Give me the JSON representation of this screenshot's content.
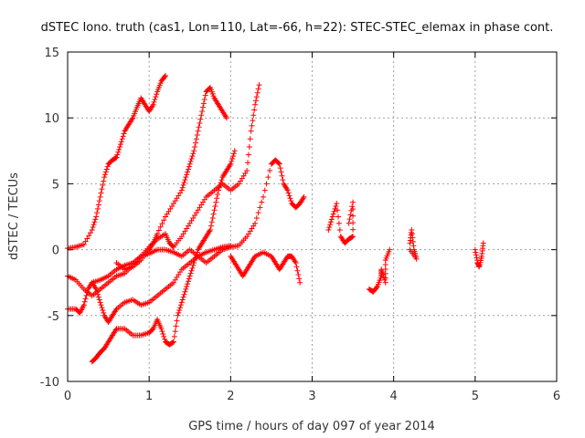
{
  "chart_data": {
    "type": "scatter",
    "title": "dSTEC Iono. truth (cas1, Lon=110, Lat=-66, h=22): STEC-STEC_elemax in phase cont.",
    "xlabel": "GPS time / hours of day 097 of year 2014",
    "ylabel": "dSTEC  / TECUs",
    "xlim": [
      0,
      6
    ],
    "ylim": [
      -10,
      15
    ],
    "xticks": [
      0,
      1,
      2,
      3,
      4,
      5,
      6
    ],
    "yticks": [
      -10,
      -5,
      0,
      5,
      10,
      15
    ],
    "grid": true,
    "marker": "plus",
    "color": "#ff0000",
    "series": [
      {
        "points": [
          [
            0.0,
            0.1
          ],
          [
            0.1,
            0.2
          ],
          [
            0.2,
            0.4
          ],
          [
            0.3,
            1.5
          ],
          [
            0.35,
            2.5
          ],
          [
            0.4,
            4.0
          ],
          [
            0.45,
            5.5
          ],
          [
            0.5,
            6.5
          ],
          [
            0.55,
            6.8
          ],
          [
            0.6,
            7.0
          ],
          [
            0.65,
            8.0
          ],
          [
            0.7,
            9.0
          ],
          [
            0.75,
            9.5
          ],
          [
            0.8,
            10.0
          ],
          [
            0.85,
            10.8
          ],
          [
            0.9,
            11.5
          ],
          [
            0.95,
            11.0
          ],
          [
            1.0,
            10.5
          ],
          [
            1.05,
            11.0
          ],
          [
            1.1,
            12.0
          ],
          [
            1.15,
            12.8
          ],
          [
            1.2,
            13.2
          ]
        ]
      },
      {
        "points": [
          [
            0.6,
            -1.0
          ],
          [
            0.7,
            -1.5
          ],
          [
            0.8,
            -1.3
          ],
          [
            0.9,
            -0.8
          ],
          [
            1.0,
            0.0
          ],
          [
            1.05,
            0.5
          ],
          [
            1.1,
            1.2
          ],
          [
            1.2,
            2.5
          ],
          [
            1.3,
            3.5
          ],
          [
            1.4,
            4.5
          ],
          [
            1.45,
            5.5
          ],
          [
            1.5,
            6.5
          ],
          [
            1.55,
            7.5
          ],
          [
            1.6,
            9.0
          ],
          [
            1.65,
            10.5
          ],
          [
            1.7,
            12.0
          ],
          [
            1.75,
            12.3
          ],
          [
            1.8,
            11.5
          ],
          [
            1.85,
            11.0
          ],
          [
            1.9,
            10.5
          ],
          [
            1.95,
            10.0
          ]
        ]
      },
      {
        "points": [
          [
            0.0,
            -2.0
          ],
          [
            0.1,
            -2.3
          ],
          [
            0.2,
            -3.0
          ],
          [
            0.3,
            -3.5
          ],
          [
            0.4,
            -3.0
          ],
          [
            0.5,
            -2.5
          ],
          [
            0.6,
            -2.0
          ],
          [
            0.7,
            -1.8
          ],
          [
            0.8,
            -1.2
          ],
          [
            0.9,
            -0.5
          ],
          [
            1.0,
            0.2
          ],
          [
            1.1,
            0.8
          ],
          [
            1.2,
            1.2
          ],
          [
            1.25,
            0.5
          ],
          [
            1.3,
            0.2
          ],
          [
            1.4,
            1.0
          ],
          [
            1.5,
            2.0
          ],
          [
            1.6,
            3.0
          ],
          [
            1.7,
            4.0
          ],
          [
            1.8,
            4.5
          ],
          [
            1.9,
            5.0
          ],
          [
            2.0,
            4.5
          ],
          [
            2.1,
            5.0
          ],
          [
            2.2,
            6.0
          ],
          [
            2.25,
            9.0
          ],
          [
            2.3,
            11.0
          ],
          [
            2.35,
            12.5
          ]
        ]
      },
      {
        "points": [
          [
            0.0,
            -4.5
          ],
          [
            0.1,
            -4.5
          ],
          [
            0.15,
            -4.8
          ],
          [
            0.2,
            -4.2
          ],
          [
            0.25,
            -3.0
          ],
          [
            0.3,
            -2.5
          ],
          [
            0.4,
            -2.3
          ],
          [
            0.5,
            -2.0
          ],
          [
            0.6,
            -1.5
          ],
          [
            0.7,
            -1.2
          ],
          [
            0.8,
            -1.0
          ],
          [
            0.9,
            -0.5
          ],
          [
            1.0,
            -0.3
          ],
          [
            1.1,
            0.0
          ],
          [
            1.2,
            0.0
          ],
          [
            1.3,
            -0.2
          ],
          [
            1.4,
            -0.5
          ],
          [
            1.5,
            0.0
          ],
          [
            1.6,
            -0.5
          ],
          [
            1.7,
            -1.0
          ],
          [
            1.8,
            -0.5
          ],
          [
            1.9,
            0.0
          ],
          [
            2.0,
            0.2
          ],
          [
            2.1,
            0.3
          ],
          [
            2.2,
            1.0
          ],
          [
            2.3,
            2.0
          ],
          [
            2.4,
            4.0
          ],
          [
            2.5,
            6.5
          ],
          [
            2.55,
            6.8
          ],
          [
            2.6,
            6.5
          ],
          [
            2.65,
            5.0
          ],
          [
            2.7,
            4.5
          ],
          [
            2.75,
            3.5
          ],
          [
            2.8,
            3.2
          ],
          [
            2.85,
            3.5
          ],
          [
            2.9,
            4.0
          ]
        ]
      },
      {
        "points": [
          [
            0.3,
            -8.5
          ],
          [
            0.35,
            -8.2
          ],
          [
            0.4,
            -7.8
          ],
          [
            0.45,
            -7.5
          ],
          [
            0.5,
            -7.0
          ],
          [
            0.55,
            -6.5
          ],
          [
            0.6,
            -6.0
          ],
          [
            0.7,
            -6.0
          ],
          [
            0.8,
            -6.5
          ],
          [
            0.9,
            -6.5
          ],
          [
            1.0,
            -6.3
          ],
          [
            1.05,
            -6.0
          ],
          [
            1.1,
            -5.3
          ],
          [
            1.15,
            -6.0
          ],
          [
            1.2,
            -7.0
          ],
          [
            1.25,
            -7.2
          ],
          [
            1.3,
            -7.0
          ],
          [
            1.35,
            -5.0
          ],
          [
            1.4,
            -4.0
          ],
          [
            1.45,
            -3.0
          ],
          [
            1.5,
            -2.0
          ],
          [
            1.55,
            -1.0
          ],
          [
            1.6,
            0.0
          ],
          [
            1.65,
            0.5
          ],
          [
            1.7,
            1.0
          ],
          [
            1.75,
            1.5
          ],
          [
            1.8,
            3.0
          ],
          [
            1.85,
            4.5
          ],
          [
            1.9,
            5.5
          ],
          [
            1.95,
            6.0
          ],
          [
            2.0,
            6.5
          ],
          [
            2.05,
            7.5
          ]
        ]
      },
      {
        "points": [
          [
            0.3,
            -2.5
          ],
          [
            0.35,
            -3.0
          ],
          [
            0.4,
            -4.0
          ],
          [
            0.45,
            -5.0
          ],
          [
            0.5,
            -5.5
          ],
          [
            0.55,
            -5.0
          ],
          [
            0.6,
            -4.5
          ],
          [
            0.7,
            -4.0
          ],
          [
            0.8,
            -3.8
          ],
          [
            0.9,
            -4.2
          ],
          [
            1.0,
            -4.0
          ],
          [
            1.1,
            -3.5
          ],
          [
            1.2,
            -3.0
          ],
          [
            1.3,
            -2.5
          ],
          [
            1.4,
            -1.5
          ],
          [
            1.5,
            -1.0
          ],
          [
            1.6,
            -0.5
          ],
          [
            1.7,
            -0.2
          ],
          [
            1.8,
            0.0
          ],
          [
            1.9,
            0.2
          ],
          [
            2.0,
            0.3
          ]
        ]
      },
      {
        "points": [
          [
            2.0,
            -0.5
          ],
          [
            2.05,
            -1.0
          ],
          [
            2.1,
            -1.5
          ],
          [
            2.15,
            -2.0
          ],
          [
            2.2,
            -1.5
          ],
          [
            2.25,
            -1.0
          ],
          [
            2.3,
            -0.5
          ],
          [
            2.4,
            -0.2
          ],
          [
            2.5,
            -0.5
          ],
          [
            2.55,
            -1.0
          ],
          [
            2.6,
            -1.5
          ],
          [
            2.65,
            -1.0
          ],
          [
            2.7,
            -0.5
          ],
          [
            2.75,
            -0.5
          ],
          [
            2.8,
            -1.0
          ],
          [
            2.85,
            -2.5
          ]
        ]
      },
      {
        "points": [
          [
            3.2,
            1.5
          ],
          [
            3.25,
            2.5
          ],
          [
            3.3,
            3.5
          ],
          [
            3.35,
            1.0
          ],
          [
            3.4,
            0.5
          ],
          [
            3.45,
            0.8
          ],
          [
            3.5,
            1.0
          ],
          [
            3.5,
            3.6
          ],
          [
            3.45,
            2.0
          ]
        ]
      },
      {
        "points": [
          [
            3.7,
            -3.0
          ],
          [
            3.75,
            -3.2
          ],
          [
            3.8,
            -2.8
          ],
          [
            3.85,
            -2.0
          ],
          [
            3.85,
            -1.5
          ],
          [
            3.9,
            -2.5
          ],
          [
            3.9,
            -0.8
          ],
          [
            3.95,
            0.0
          ]
        ]
      },
      {
        "points": [
          [
            4.2,
            0.5
          ],
          [
            4.22,
            1.5
          ],
          [
            4.25,
            0.0
          ],
          [
            4.28,
            -0.7
          ],
          [
            4.2,
            0.0
          ]
        ]
      },
      {
        "points": [
          [
            5.0,
            0.0
          ],
          [
            5.03,
            -1.0
          ],
          [
            5.05,
            -1.3
          ],
          [
            5.08,
            -0.5
          ],
          [
            5.1,
            0.5
          ]
        ]
      }
    ]
  }
}
